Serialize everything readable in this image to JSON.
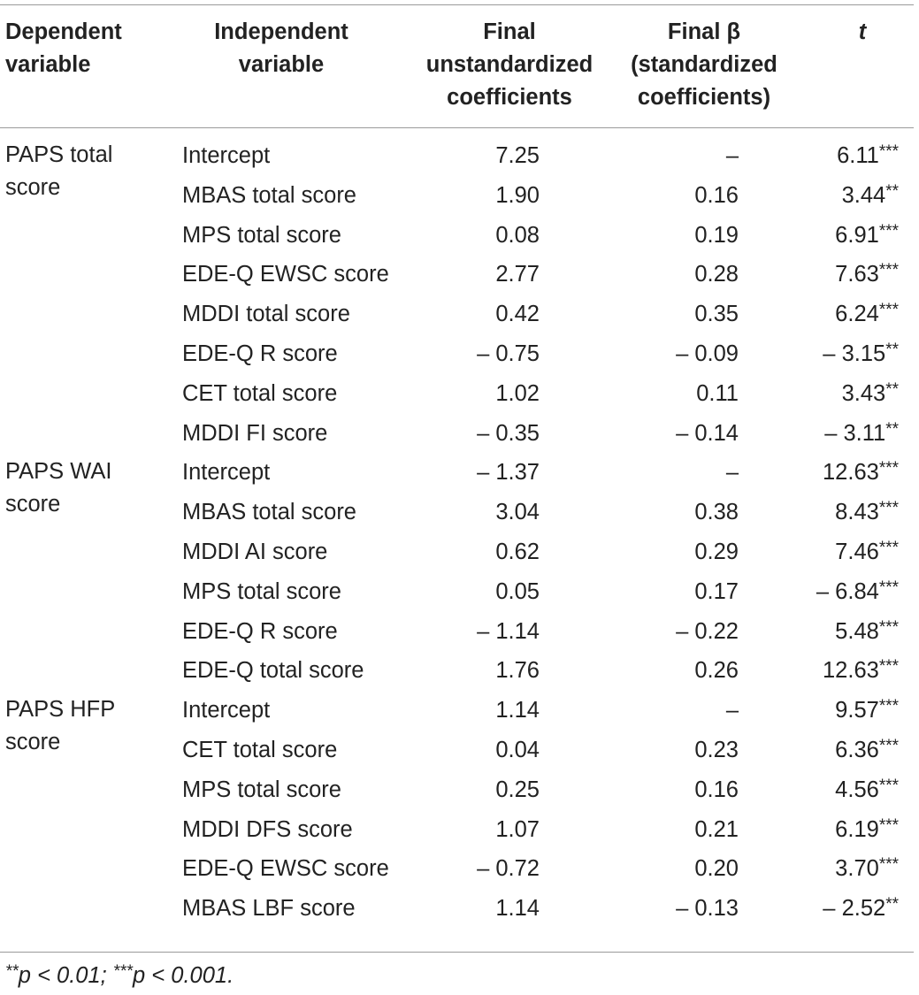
{
  "headers": {
    "dependent": [
      "Dependent",
      "variable"
    ],
    "independent": [
      "Independent",
      "variable"
    ],
    "unstandardized": [
      "Final",
      "unstandardized",
      "coefficients"
    ],
    "standardized": [
      "Final β",
      "(standardized",
      "coefficients)"
    ],
    "t": "t"
  },
  "groups": [
    {
      "dependent": "PAPS total score",
      "rows": [
        {
          "independent": "Intercept",
          "b": "7.25",
          "beta": "–",
          "t": "6.11",
          "sig": "***"
        },
        {
          "independent": "MBAS total score",
          "b": "1.90",
          "beta": "0.16",
          "t": "3.44",
          "sig": "**"
        },
        {
          "independent": "MPS total score",
          "b": "0.08",
          "beta": "0.19",
          "t": "6.91",
          "sig": "***"
        },
        {
          "independent": "EDE-Q EWSC score",
          "b": "2.77",
          "beta": "0.28",
          "t": "7.63",
          "sig": "***"
        },
        {
          "independent": "MDDI total score",
          "b": "0.42",
          "beta": "0.35",
          "t": "6.24",
          "sig": "***"
        },
        {
          "independent": "EDE-Q R score",
          "b": "– 0.75",
          "beta": "– 0.09",
          "t": "– 3.15",
          "sig": "**"
        },
        {
          "independent": "CET total score",
          "b": "1.02",
          "beta": "0.11",
          "t": "3.43",
          "sig": "**"
        },
        {
          "independent": "MDDI FI score",
          "b": "– 0.35",
          "beta": "– 0.14",
          "t": "– 3.11",
          "sig": "**"
        }
      ]
    },
    {
      "dependent": "PAPS WAI score",
      "rows": [
        {
          "independent": "Intercept",
          "b": "– 1.37",
          "beta": "–",
          "t": "12.63",
          "sig": "***"
        },
        {
          "independent": "MBAS total score",
          "b": "3.04",
          "beta": "0.38",
          "t": "8.43",
          "sig": "***"
        },
        {
          "independent": "MDDI AI score",
          "b": "0.62",
          "beta": "0.29",
          "t": "7.46",
          "sig": "***"
        },
        {
          "independent": "MPS total score",
          "b": "0.05",
          "beta": "0.17",
          "t": "– 6.84",
          "sig": "***"
        },
        {
          "independent": "EDE-Q R score",
          "b": "– 1.14",
          "beta": "– 0.22",
          "t": "5.48",
          "sig": "***"
        },
        {
          "independent": "EDE-Q total score",
          "b": "1.76",
          "beta": "0.26",
          "t": "12.63",
          "sig": "***"
        }
      ]
    },
    {
      "dependent": "PAPS HFP score",
      "rows": [
        {
          "independent": "Intercept",
          "b": "1.14",
          "beta": "–",
          "t": "9.57",
          "sig": "***"
        },
        {
          "independent": "CET total score",
          "b": "0.04",
          "beta": "0.23",
          "t": "6.36",
          "sig": "***"
        },
        {
          "independent": "MPS total score",
          "b": "0.25",
          "beta": "0.16",
          "t": "4.56",
          "sig": "***"
        },
        {
          "independent": "MDDI DFS score",
          "b": "1.07",
          "beta": "0.21",
          "t": "6.19",
          "sig": "***"
        },
        {
          "independent": "EDE-Q EWSC score",
          "b": "– 0.72",
          "beta": "0.20",
          "t": "3.70",
          "sig": "***"
        },
        {
          "independent": "MBAS LBF score",
          "b": "1.14",
          "beta": "– 0.13",
          "t": "– 2.52",
          "sig": "**"
        }
      ]
    }
  ],
  "footnote": {
    "part1_stars": "**",
    "part1_text": "p < 0.01; ",
    "part2_stars": "***",
    "part2_text": "p < 0.001."
  }
}
